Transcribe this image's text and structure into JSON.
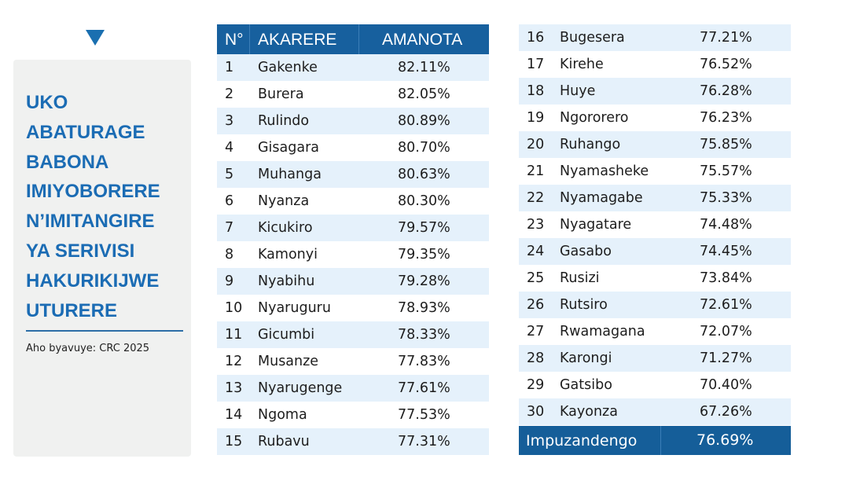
{
  "panel": {
    "title_lines": [
      "UKO",
      "ABATURAGE",
      "BABONA",
      "IMIYOBORERE",
      "N’IMITANGIRE",
      "YA SERIVISI",
      "HAKURIKIJWE",
      "UTURERE"
    ],
    "source": "Aho byavuye: CRC 2025"
  },
  "table": {
    "headers": {
      "no": "N°",
      "district": "AKARERE",
      "score": "AMANOTA"
    },
    "rows": [
      [
        "1",
        "Gakenke",
        "82.11%"
      ],
      [
        "2",
        "Burera",
        "82.05%"
      ],
      [
        "3",
        "Rulindo",
        "80.89%"
      ],
      [
        "4",
        "Gisagara",
        "80.70%"
      ],
      [
        "5",
        "Muhanga",
        "80.63%"
      ],
      [
        "6",
        "Nyanza",
        "80.30%"
      ],
      [
        "7",
        "Kicukiro",
        "79.57%"
      ],
      [
        "8",
        "Kamonyi",
        "79.35%"
      ],
      [
        "9",
        "Nyabihu",
        "79.28%"
      ],
      [
        "10",
        "Nyaruguru",
        "78.93%"
      ],
      [
        "11",
        "Gicumbi",
        "78.33%"
      ],
      [
        "12",
        "Musanze",
        "77.83%"
      ],
      [
        "13",
        "Nyarugenge",
        "77.61%"
      ],
      [
        "14",
        "Ngoma",
        "77.53%"
      ],
      [
        "15",
        "Rubavu",
        "77.31%"
      ],
      [
        "16",
        "Bugesera",
        "77.21%"
      ],
      [
        "17",
        "Kirehe",
        "76.52%"
      ],
      [
        "18",
        "Huye",
        "76.28%"
      ],
      [
        "19",
        "Ngororero",
        "76.23%"
      ],
      [
        "20",
        "Ruhango",
        "75.85%"
      ],
      [
        "21",
        "Nyamasheke",
        "75.57%"
      ],
      [
        "22",
        "Nyamagabe",
        "75.33%"
      ],
      [
        "23",
        "Nyagatare",
        "74.48%"
      ],
      [
        "24",
        "Gasabo",
        "74.45%"
      ],
      [
        "25",
        "Rusizi",
        "73.84%"
      ],
      [
        "26",
        "Rutsiro",
        "72.61%"
      ],
      [
        "27",
        "Rwamagana",
        "72.07%"
      ],
      [
        "28",
        "Karongi",
        "71.27%"
      ],
      [
        "29",
        "Gatsibo",
        "70.40%"
      ],
      [
        "30",
        "Kayonza",
        "67.26%"
      ]
    ],
    "footer": {
      "label": "Impuzandengo",
      "value": "76.69%"
    }
  },
  "colors": {
    "header": "#17609e",
    "stripe": "#e5f1fb",
    "accent": "#1b6cb4"
  }
}
